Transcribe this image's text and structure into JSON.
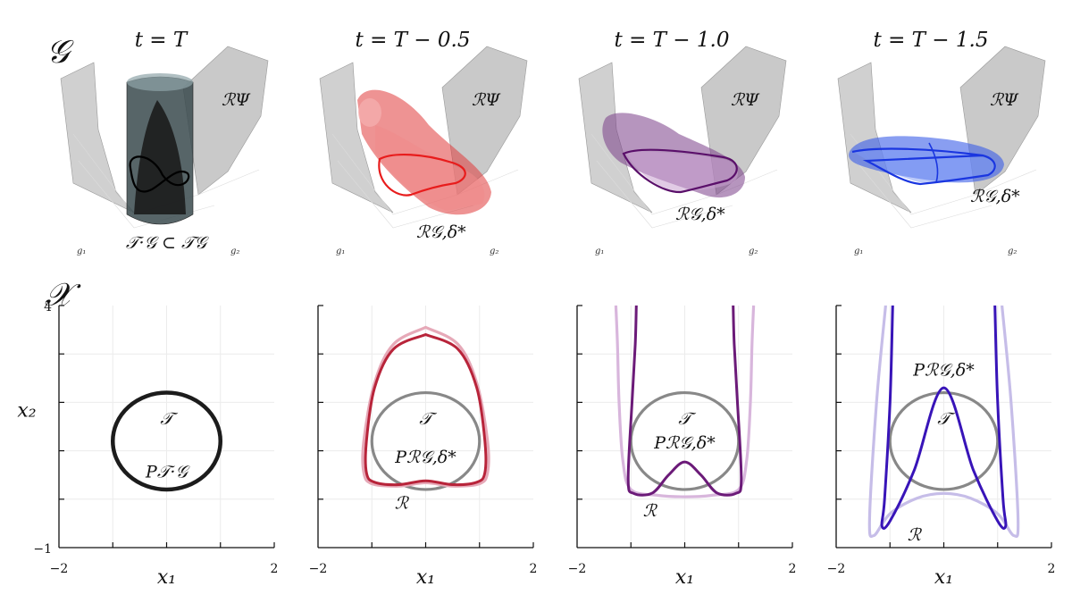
{
  "figure": {
    "row_labels": {
      "top": "𝒢",
      "bottom": "𝒳"
    },
    "panel_titles": [
      "t = T",
      "t = T − 0.5",
      "t = T − 1.0",
      "t = T − 1.5"
    ],
    "axis3d_labels": {
      "g1": "g₁",
      "g2": "g₂"
    },
    "surface_label": "ℛΨ",
    "top_labels": [
      "𝒯·𝒢 ⊂ 𝒯𝒢",
      "ℛ𝒢,δ*",
      "ℛ𝒢,δ*",
      "ℛ𝒢,δ*"
    ],
    "colors": {
      "panel0": "#1c1c1c",
      "panel1": "#b8243a",
      "panel2": "#6b1a78",
      "panel3": "#3814b8",
      "panel1_light": "#e6a9b8",
      "panel2_light": "#d8b6dc",
      "panel3_light": "#c6bde8",
      "target_gray": "#888888",
      "surface_gray": "#b0b0b0"
    }
  },
  "chart_data": [
    {
      "type": "line",
      "panel": 1,
      "xlabel": "x₁",
      "ylabel": "x₂",
      "xlim": [
        -2,
        2
      ],
      "ylim": [
        -1,
        4
      ],
      "x_tick_labels": [
        "−2",
        "2"
      ],
      "y_tick_labels": [
        "4",
        "−1"
      ],
      "annotations": [
        "𝒯",
        "P𝒯·𝒢"
      ],
      "series": [
        {
          "curve": "circle",
          "center": [
            0,
            1.2
          ],
          "radius": 1.0,
          "style": "black-thick"
        }
      ]
    },
    {
      "type": "line",
      "panel": 2,
      "xlabel": "x₁",
      "xlim": [
        -2,
        2
      ],
      "ylim": [
        -1,
        4
      ],
      "x_tick_labels": [
        "−2",
        "2"
      ],
      "annotations": [
        "𝒯",
        "Pℛ𝒢,δ*",
        "ℛ"
      ],
      "series": [
        {
          "curve": "circle",
          "center": [
            0,
            1.2
          ],
          "radius": 1.0,
          "style": "gray"
        },
        {
          "curve": "loop",
          "x": [
            0,
            -0.6,
            -0.95,
            -1.15,
            -1.15,
            -1.0,
            -0.5,
            0,
            0.5,
            1.0,
            1.15,
            1.15,
            0.95,
            0.6,
            0
          ],
          "y": [
            3.55,
            3.2,
            2.4,
            1.2,
            0.55,
            0.32,
            0.27,
            0.34,
            0.27,
            0.32,
            0.55,
            1.2,
            2.4,
            3.2,
            3.55
          ],
          "style": "light"
        },
        {
          "curve": "loop",
          "x": [
            0,
            -0.6,
            -0.95,
            -1.1,
            -1.1,
            -0.95,
            -0.5,
            0,
            0.5,
            0.95,
            1.1,
            1.1,
            0.95,
            0.6,
            0
          ],
          "y": [
            3.4,
            3.1,
            2.3,
            1.2,
            0.55,
            0.35,
            0.3,
            0.38,
            0.3,
            0.35,
            0.55,
            1.2,
            2.3,
            3.1,
            3.4
          ],
          "style": "dark"
        }
      ]
    },
    {
      "type": "line",
      "panel": 3,
      "xlabel": "x₁",
      "xlim": [
        -2,
        2
      ],
      "ylim": [
        -1,
        4
      ],
      "x_tick_labels": [
        "−2",
        "2"
      ],
      "annotations": [
        "𝒯",
        "Pℛ𝒢,δ*",
        "ℛ"
      ],
      "series": [
        {
          "curve": "circle",
          "center": [
            0,
            1.2
          ],
          "radius": 1.0,
          "style": "gray"
        },
        {
          "curve": "open",
          "x": [
            -1.28,
            -1.25,
            -1.22,
            -1.15,
            -1.0,
            -0.5,
            0,
            0.5,
            1.0,
            1.15,
            1.22,
            1.25,
            1.28
          ],
          "y": [
            4.0,
            3.2,
            2.0,
            0.8,
            0.2,
            0.08,
            0.05,
            0.08,
            0.2,
            0.8,
            2.0,
            3.2,
            4.0
          ],
          "style": "light"
        },
        {
          "curve": "open",
          "x": [
            -0.9,
            -0.92,
            -0.98,
            -1.05,
            -0.95,
            -0.6,
            -0.3,
            0,
            0.3,
            0.6,
            0.95,
            1.05,
            0.98,
            0.92,
            0.9
          ],
          "y": [
            4.0,
            3.2,
            2.0,
            0.4,
            0.12,
            0.13,
            0.5,
            0.77,
            0.5,
            0.13,
            0.12,
            0.4,
            2.0,
            3.2,
            4.0
          ],
          "style": "dark"
        }
      ]
    },
    {
      "type": "line",
      "panel": 4,
      "xlabel": "x₁",
      "xlim": [
        -2,
        2
      ],
      "ylim": [
        -1,
        4
      ],
      "x_tick_labels": [
        "−2",
        "2"
      ],
      "annotations": [
        "Pℛ𝒢,δ*",
        "𝒯",
        "ℛ"
      ],
      "series": [
        {
          "curve": "circle",
          "center": [
            0,
            1.2
          ],
          "radius": 1.0,
          "style": "gray"
        },
        {
          "curve": "open",
          "x": [
            -1.08,
            -1.25,
            -1.38,
            -1.3,
            -1.0,
            -0.5,
            0,
            0.5,
            1.0,
            1.3,
            1.38,
            1.25,
            1.08
          ],
          "y": [
            4.0,
            2.0,
            -0.4,
            -0.75,
            -0.3,
            0.02,
            0.12,
            0.02,
            -0.3,
            -0.75,
            -0.4,
            2.0,
            4.0
          ],
          "style": "light"
        },
        {
          "curve": "open",
          "x": [
            -0.95,
            -1.0,
            -1.1,
            -1.15,
            -1.0,
            -0.55,
            0,
            0.55,
            1.0,
            1.15,
            1.1,
            1.0,
            0.95
          ],
          "y": [
            4.0,
            2.0,
            0.0,
            -0.55,
            -0.45,
            0.6,
            2.3,
            0.6,
            -0.45,
            -0.55,
            0.0,
            2.0,
            4.0
          ],
          "style": "dark"
        }
      ]
    }
  ]
}
